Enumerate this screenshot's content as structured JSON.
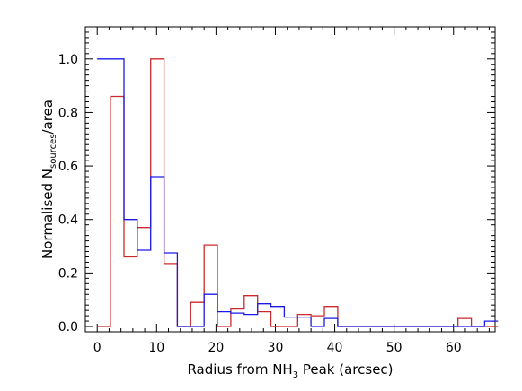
{
  "chart_data": {
    "type": "line",
    "subtype": "step-histogram",
    "title": "",
    "xlabel": {
      "prefix": "Radius from NH",
      "sub": "3",
      "suffix": " Peak (arcsec)"
    },
    "ylabel": {
      "prefix": "Normalised N",
      "sub": "sources",
      "suffix": "/area"
    },
    "xlim": [
      -2,
      67
    ],
    "ylim": [
      -0.02,
      1.12
    ],
    "x_ticks": [
      0,
      10,
      20,
      30,
      40,
      50,
      60
    ],
    "y_ticks": [
      0.0,
      0.2,
      0.4,
      0.6,
      0.8,
      1.0
    ],
    "y_tick_labels": [
      "0.0",
      "0.2",
      "0.4",
      "0.6",
      "0.8",
      "1.0"
    ],
    "grid": false,
    "bin_edges": [
      0,
      2.25,
      4.5,
      6.75,
      9,
      11.25,
      13.5,
      15.75,
      18,
      20.25,
      22.5,
      24.75,
      27,
      29.25,
      31.5,
      33.75,
      36,
      38.25,
      40.5,
      42.75,
      45,
      47.25,
      49.5,
      51.75,
      54,
      56.25,
      58.5,
      60.75,
      63,
      65.25,
      67.5
    ],
    "series": [
      {
        "color": "#cc2a2a",
        "values": [
          0.0,
          0.86,
          0.26,
          0.37,
          1.0,
          0.235,
          0.0,
          0.09,
          0.305,
          0.0,
          0.065,
          0.115,
          0.055,
          0.0,
          0.0,
          0.045,
          0.04,
          0.075,
          0.0,
          0.0,
          0.0,
          0.0,
          0.0,
          0.0,
          0.0,
          0.0,
          0.0,
          0.03,
          0.0,
          0.0
        ]
      },
      {
        "color": "#1a1ae6",
        "values": [
          1.0,
          1.0,
          0.4,
          0.285,
          0.56,
          0.275,
          0.0,
          0.0,
          0.12,
          0.055,
          0.05,
          0.045,
          0.085,
          0.075,
          0.035,
          0.035,
          0.0,
          0.03,
          0.0,
          0.0,
          0.0,
          0.0,
          0.0,
          0.0,
          0.0,
          0.0,
          0.0,
          0.0,
          0.0,
          0.02
        ]
      }
    ]
  }
}
